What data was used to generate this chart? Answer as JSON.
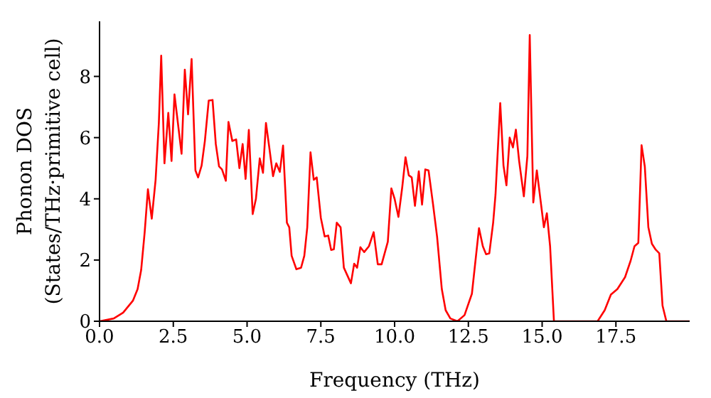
{
  "chart_data": {
    "type": "line",
    "xlabel": "Frequency (THz)",
    "ylabel": "Phonon DOS\n(States/THz·primitive cell)",
    "x": [
      0,
      0.48,
      0.8,
      1.13,
      1.29,
      1.41,
      1.53,
      1.64,
      1.77,
      1.9,
      2.01,
      2.09,
      2.2,
      2.33,
      2.44,
      2.54,
      2.78,
      2.89,
      3.0,
      3.12,
      3.25,
      3.34,
      3.46,
      3.57,
      3.7,
      3.83,
      3.94,
      4.05,
      4.15,
      4.28,
      4.37,
      4.5,
      4.63,
      4.74,
      4.85,
      4.95,
      5.06,
      5.19,
      5.3,
      5.43,
      5.54,
      5.64,
      5.75,
      5.88,
      5.99,
      6.11,
      6.22,
      6.35,
      6.43,
      6.51,
      6.67,
      6.83,
      6.94,
      7.04,
      7.15,
      7.26,
      7.36,
      7.5,
      7.63,
      7.75,
      7.85,
      7.94,
      8.04,
      8.17,
      8.28,
      8.52,
      8.63,
      8.73,
      8.84,
      8.97,
      9.13,
      9.29,
      9.43,
      9.56,
      9.77,
      9.89,
      10.0,
      10.13,
      10.26,
      10.37,
      10.48,
      10.58,
      10.69,
      10.82,
      10.93,
      11.04,
      11.15,
      11.3,
      11.44,
      11.6,
      11.73,
      11.89,
      12.13,
      12.37,
      12.62,
      12.86,
      12.99,
      13.1,
      13.21,
      13.34,
      13.42,
      13.58,
      13.69,
      13.79,
      13.9,
      14.01,
      14.11,
      14.22,
      14.38,
      14.5,
      14.58,
      14.7,
      14.82,
      14.95,
      15.06,
      15.16,
      15.27,
      15.4,
      16.88,
      17.12,
      17.33,
      17.55,
      17.81,
      18.0,
      18.13,
      18.26,
      18.37,
      18.48,
      18.6,
      18.72,
      18.84,
      18.97,
      19.08,
      19.21,
      20.0
    ],
    "series": [
      {
        "color": "#ff0000",
        "values": [
          0,
          0.09,
          0.28,
          0.67,
          1.05,
          1.67,
          2.91,
          4.31,
          3.35,
          4.62,
          6.48,
          8.68,
          5.16,
          6.81,
          5.24,
          7.41,
          5.47,
          8.22,
          6.76,
          8.57,
          4.93,
          4.7,
          5.09,
          5.89,
          7.21,
          7.23,
          5.79,
          5.06,
          4.96,
          4.59,
          6.51,
          5.89,
          5.94,
          5.0,
          5.79,
          4.65,
          6.25,
          3.5,
          4.0,
          5.32,
          4.85,
          6.48,
          5.7,
          4.74,
          5.16,
          4.88,
          5.74,
          3.22,
          3.07,
          2.14,
          1.7,
          1.75,
          2.14,
          3.07,
          5.52,
          4.62,
          4.7,
          3.38,
          2.77,
          2.8,
          2.33,
          2.35,
          3.22,
          3.07,
          1.75,
          1.24,
          1.88,
          1.75,
          2.42,
          2.26,
          2.45,
          2.91,
          1.86,
          1.86,
          2.6,
          4.34,
          4.0,
          3.41,
          4.39,
          5.36,
          4.77,
          4.7,
          3.77,
          4.9,
          3.81,
          4.96,
          4.93,
          3.84,
          2.76,
          1.05,
          0.36,
          0.09,
          0,
          0.2,
          0.9,
          3.04,
          2.45,
          2.19,
          2.22,
          3.22,
          4.14,
          7.13,
          5.09,
          4.44,
          6.0,
          5.68,
          6.26,
          5.24,
          4.08,
          5.4,
          9.35,
          3.88,
          4.93,
          3.92,
          3.07,
          3.53,
          2.45,
          0,
          0,
          0.36,
          0.87,
          1.05,
          1.44,
          1.98,
          2.45,
          2.56,
          5.75,
          5.05,
          3.07,
          2.53,
          2.35,
          2.22,
          0.51,
          0,
          0
        ]
      }
    ],
    "xlim": [
      0,
      20
    ],
    "xticks": [
      {
        "value": 0,
        "label": "0.0"
      },
      {
        "value": 2.5,
        "label": "2.5"
      },
      {
        "value": 5,
        "label": "5.0"
      },
      {
        "value": 7.5,
        "label": "7.5"
      },
      {
        "value": 10,
        "label": "10.0"
      },
      {
        "value": 12.5,
        "label": "12.5"
      },
      {
        "value": 15,
        "label": "15.0"
      },
      {
        "value": 17.5,
        "label": "17.5"
      }
    ],
    "ylim": [
      0,
      9.8
    ],
    "yticks": [
      0,
      2,
      4,
      6,
      8
    ],
    "legend": false,
    "grid": false,
    "marker": "none",
    "line_style": "solid"
  }
}
